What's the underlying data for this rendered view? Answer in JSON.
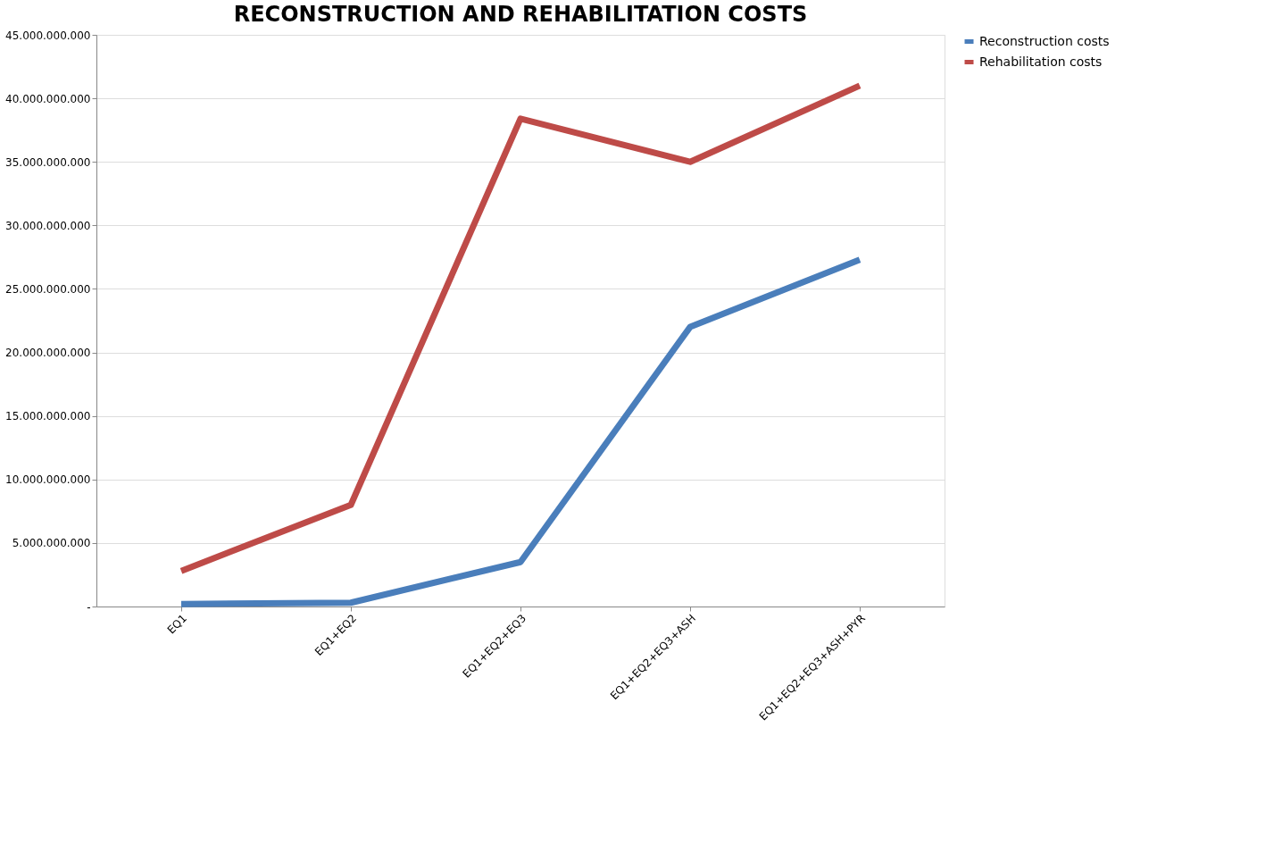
{
  "chart_data": {
    "type": "line",
    "title": "RECONSTRUCTION AND REHABILITATION COSTS",
    "categories": [
      "EQ1",
      "EQ1+EQ2",
      "EQ1+EQ2+EQ3",
      "EQ1+EQ2+EQ3+ASH",
      "EQ1+EQ2+EQ3+ASH+PYR"
    ],
    "series": [
      {
        "name": "Reconstruction costs",
        "color": "#4a7ebb",
        "values": [
          200000000,
          300000000,
          3500000000,
          22000000000,
          27300000000
        ]
      },
      {
        "name": "Rehabilitation costs",
        "color": "#be4b48",
        "values": [
          2800000000,
          8000000000,
          38400000000,
          35000000000,
          41000000000
        ]
      }
    ],
    "ylim": [
      0,
      45000000000
    ],
    "yticks": [
      {
        "value": 0,
        "label": "-"
      },
      {
        "value": 5000000000,
        "label": "5.000.000.000"
      },
      {
        "value": 10000000000,
        "label": "10.000.000.000"
      },
      {
        "value": 15000000000,
        "label": "15.000.000.000"
      },
      {
        "value": 20000000000,
        "label": "20.000.000.000"
      },
      {
        "value": 25000000000,
        "label": "25.000.000.000"
      },
      {
        "value": 30000000000,
        "label": "30.000.000.000"
      },
      {
        "value": 35000000000,
        "label": "35.000.000.000"
      },
      {
        "value": 40000000000,
        "label": "40.000.000.000"
      },
      {
        "value": 45000000000,
        "label": "45.000.000.000"
      }
    ],
    "grid": "y",
    "legend": "right",
    "marker": "none",
    "line_style": "solid"
  }
}
